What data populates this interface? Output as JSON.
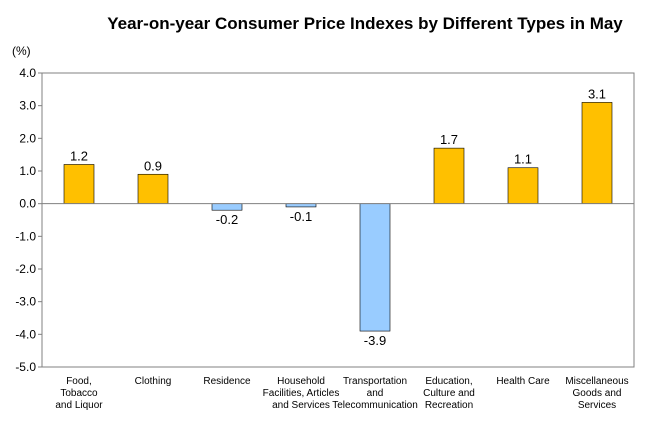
{
  "chart_data": {
    "type": "bar",
    "title": "Year-on-year Consumer Price Indexes by Different Types in May",
    "unit": "(%)",
    "categories": [
      [
        "Food,",
        "Tobacco",
        "and Liquor"
      ],
      [
        "Clothing"
      ],
      [
        "Residence"
      ],
      [
        "Household",
        "Facilities, Articles",
        "and Services"
      ],
      [
        "Transportation",
        "and",
        "Telecommunication"
      ],
      [
        "Education,",
        "Culture and",
        "Recreation"
      ],
      [
        "Health Care"
      ],
      [
        "Miscellaneous",
        "Goods and",
        "Services"
      ]
    ],
    "values": [
      1.2,
      0.9,
      -0.2,
      -0.1,
      -3.9,
      1.7,
      1.1,
      3.1
    ],
    "value_labels": [
      "1.2",
      "0.9",
      "-0.2",
      "-0.1",
      "-3.9",
      "1.7",
      "1.1",
      "3.1"
    ],
    "ylim": [
      -5.0,
      4.0
    ],
    "yticks": [
      4.0,
      3.0,
      2.0,
      1.0,
      0.0,
      -1.0,
      -2.0,
      -3.0,
      -4.0,
      -5.0
    ],
    "ytick_labels": [
      "4.0",
      "3.0",
      "2.0",
      "1.0",
      "0.0",
      "-1.0",
      "-2.0",
      "-3.0",
      "-4.0",
      "-5.0"
    ],
    "positive_color": "#FFC000",
    "negative_color": "#99CCFF",
    "grid": false,
    "legend": "none"
  }
}
